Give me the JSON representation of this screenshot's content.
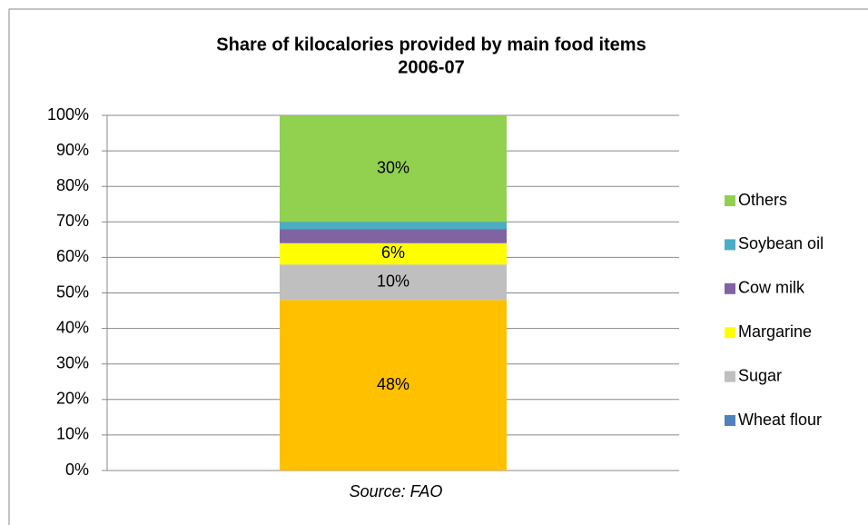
{
  "chart_data": {
    "type": "stacked_bar",
    "title": [
      "Share of kilocalories provided by main food items",
      "2006-07"
    ],
    "x_label": "Source: FAO",
    "categories": [
      null
    ],
    "series": [
      {
        "name": "Wheat flour",
        "color": "#4f81bd",
        "point_color": "#ffc000",
        "values": [
          48
        ],
        "value_labels": [
          "48%"
        ]
      },
      {
        "name": "Sugar",
        "color": "#bfbfbf",
        "values": [
          10
        ],
        "value_labels": [
          "10%"
        ]
      },
      {
        "name": "Margarine",
        "color": "#ffff00",
        "values": [
          6
        ],
        "value_labels": [
          "6%"
        ]
      },
      {
        "name": "Cow milk",
        "color": "#8064a2",
        "values": [
          4
        ]
      },
      {
        "name": "Soybean oil",
        "color": "#4bacc6",
        "values": [
          2
        ]
      },
      {
        "name": "Others",
        "color": "#92d050",
        "values": [
          30
        ],
        "value_labels": [
          "30%"
        ]
      }
    ],
    "ylim": [
      0,
      100
    ],
    "yticks": [
      {
        "value": 0,
        "label": "0%"
      },
      {
        "value": 10,
        "label": "10%"
      },
      {
        "value": 20,
        "label": "20%"
      },
      {
        "value": 30,
        "label": "30%"
      },
      {
        "value": 40,
        "label": "40%"
      },
      {
        "value": 50,
        "label": "50%"
      },
      {
        "value": 60,
        "label": "60%"
      },
      {
        "value": 70,
        "label": "70%"
      },
      {
        "value": 80,
        "label": "80%"
      },
      {
        "value": 90,
        "label": "90%"
      },
      {
        "value": 100,
        "label": "100%"
      }
    ],
    "grid": true,
    "legend": "right"
  }
}
